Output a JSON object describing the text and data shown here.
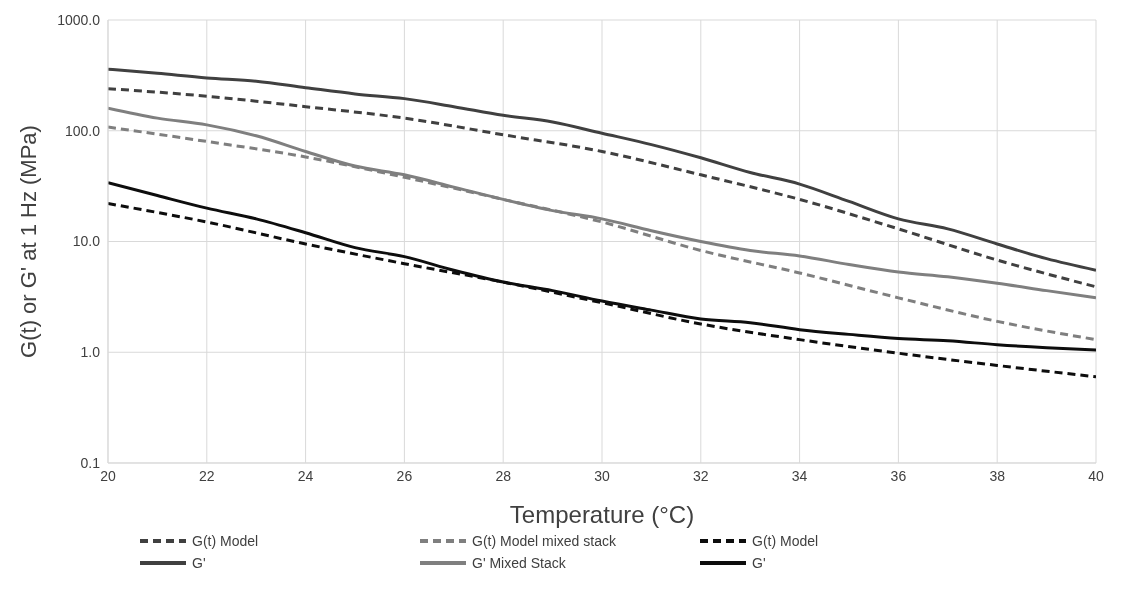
{
  "chart_data": {
    "type": "line",
    "xlabel": "Temperature (°C)",
    "ylabel": "G(t) or G' at 1 Hz (MPa)",
    "log": "y",
    "grid": true,
    "legend": "bottom",
    "marker": "none",
    "xlim": [
      20,
      40
    ],
    "xticks": [
      20,
      22,
      24,
      26,
      28,
      30,
      32,
      34,
      36,
      38,
      40
    ],
    "ylim": [
      0.1,
      1000
    ],
    "yticks": [
      0.1,
      {
        "value": 1,
        "label": "1.0"
      },
      {
        "value": 10,
        "label": "10.0"
      },
      {
        "value": 100,
        "label": "100.0"
      },
      {
        "value": 1000,
        "label": "1000.0"
      }
    ],
    "series": [
      {
        "name": "G(t) Model",
        "color": "#404040",
        "line_style": "dashed",
        "x": [
          20,
          22,
          24,
          26,
          28,
          30,
          32,
          34,
          36,
          38,
          40
        ],
        "values": [
          240,
          205,
          165,
          130,
          92,
          65,
          40,
          24,
          13,
          6.8,
          3.9
        ]
      },
      {
        "name": "G(t) Model mixed stack",
        "color": "#7f7f7f",
        "line_style": "dashed",
        "x": [
          20,
          22,
          24,
          26,
          28,
          30,
          32,
          34,
          36,
          38,
          40
        ],
        "values": [
          108,
          80,
          58,
          38,
          24,
          15,
          8.3,
          5.2,
          3.1,
          1.9,
          1.3
        ]
      },
      {
        "name": "G(t) Model",
        "color": "#0d0d0d",
        "line_style": "dashed",
        "x": [
          20,
          22,
          24,
          26,
          28,
          30,
          32,
          34,
          36,
          38,
          40
        ],
        "values": [
          22,
          15,
          9.5,
          6.3,
          4.3,
          2.8,
          1.8,
          1.3,
          0.98,
          0.76,
          0.6
        ]
      },
      {
        "name": "G'",
        "color": "#404040",
        "line_style": "solid",
        "x": [
          20,
          21,
          22,
          23,
          24,
          25,
          26,
          27,
          28,
          29,
          30,
          31,
          32,
          33,
          34,
          35,
          36,
          37,
          38,
          39,
          40
        ],
        "values": [
          360,
          330,
          300,
          280,
          245,
          215,
          195,
          165,
          138,
          120,
          95,
          75,
          57,
          42,
          33,
          23,
          16,
          13,
          9.5,
          7,
          5.5
        ]
      },
      {
        "name": "G' Mixed Stack",
        "color": "#7f7f7f",
        "line_style": "solid",
        "x": [
          20,
          21,
          22,
          23,
          24,
          25,
          26,
          27,
          28,
          29,
          30,
          31,
          32,
          33,
          34,
          35,
          36,
          37,
          38,
          39,
          40
        ],
        "values": [
          160,
          130,
          113,
          90,
          65,
          48,
          40,
          31,
          24,
          19,
          16,
          12.5,
          10,
          8.3,
          7.4,
          6.2,
          5.3,
          4.8,
          4.2,
          3.6,
          3.1
        ]
      },
      {
        "name": "G'",
        "color": "#0d0d0d",
        "line_style": "solid",
        "x": [
          20,
          21,
          22,
          23,
          24,
          25,
          26,
          27,
          28,
          29,
          30,
          31,
          32,
          33,
          34,
          35,
          36,
          37,
          38,
          39,
          40
        ],
        "values": [
          34,
          26,
          20,
          16,
          12,
          8.8,
          7.3,
          5.5,
          4.3,
          3.6,
          2.9,
          2.4,
          2.0,
          1.85,
          1.6,
          1.45,
          1.33,
          1.27,
          1.17,
          1.1,
          1.05
        ]
      }
    ]
  }
}
